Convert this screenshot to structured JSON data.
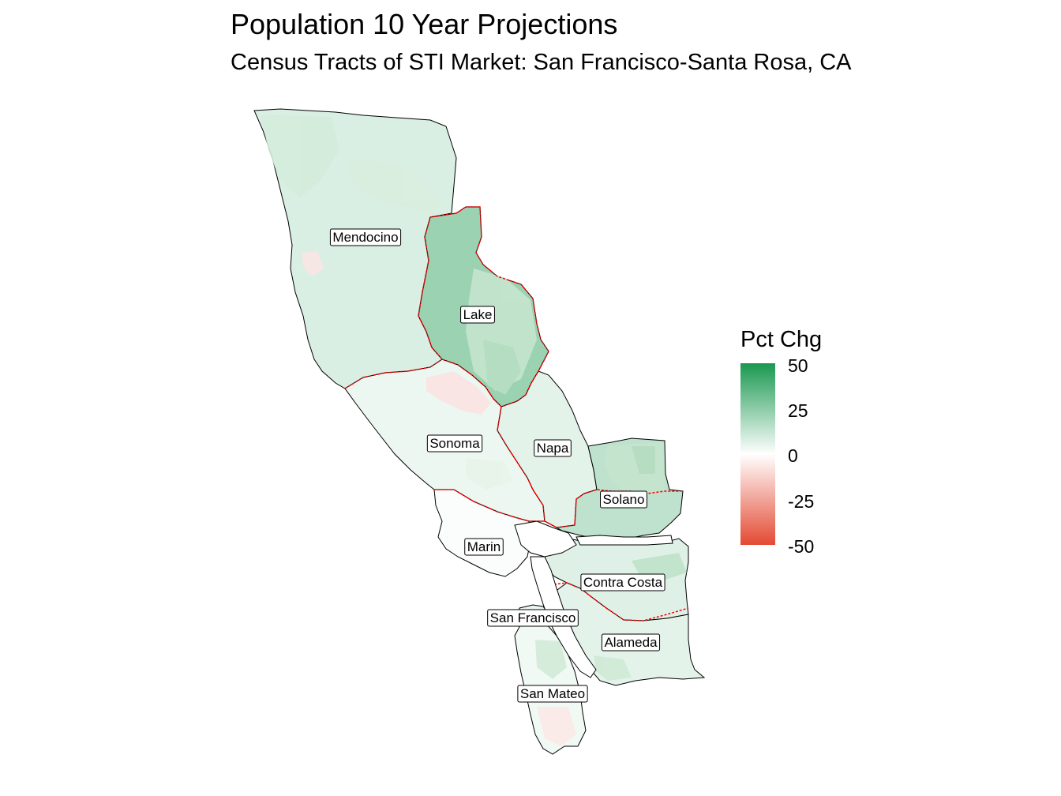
{
  "title": "Population 10 Year Projections",
  "subtitle": "Census Tracts of STI Market: San Francisco-Santa Rosa, CA",
  "legend": {
    "title": "Pct Chg",
    "ticks": [
      "50",
      "25",
      "0",
      "-25",
      "-50"
    ],
    "min": -50,
    "max": 50,
    "colors": {
      "high": "#1a9850",
      "mid": "#ffffff",
      "low": "#e34a33"
    }
  },
  "colors": {
    "outline": "#000000",
    "market_boundary": "#ff0000"
  },
  "counties": [
    {
      "id": "mendocino",
      "name": "Mendocino",
      "pct_chg": 8
    },
    {
      "id": "lake",
      "name": "Lake",
      "pct_chg": 22
    },
    {
      "id": "sonoma",
      "name": "Sonoma",
      "pct_chg": 4
    },
    {
      "id": "napa",
      "name": "Napa",
      "pct_chg": 6
    },
    {
      "id": "solano",
      "name": "Solano",
      "pct_chg": 14
    },
    {
      "id": "marin",
      "name": "Marin",
      "pct_chg": 1
    },
    {
      "id": "contra_costa",
      "name": "Contra Costa",
      "pct_chg": 7
    },
    {
      "id": "san_francisco",
      "name": "San Francisco",
      "pct_chg": 5
    },
    {
      "id": "alameda",
      "name": "Alameda",
      "pct_chg": 6
    },
    {
      "id": "san_mateo",
      "name": "San Mateo",
      "pct_chg": 3
    }
  ]
}
